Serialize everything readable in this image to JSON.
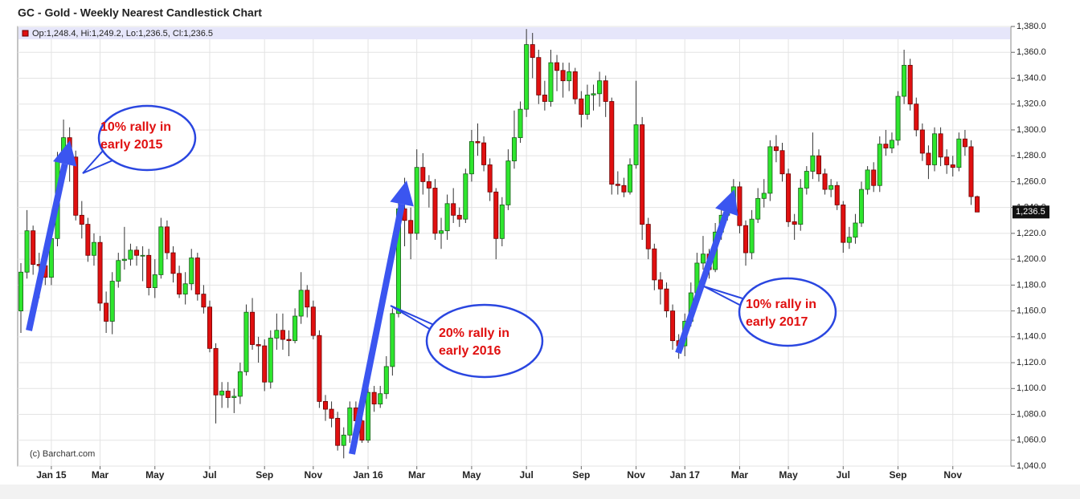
{
  "chart_data": {
    "type": "candlestick",
    "title": "GC - Gold - Weekly Nearest Candlestick Chart",
    "legend_text": "Op:1,248.4, Hi:1,249.2, Lo:1,236.5, Cl:1,236.5",
    "watermark": "(c) Barchart.com",
    "up_color": "#2ee62e",
    "down_color": "#e01010",
    "grid": true,
    "ylim": [
      1040,
      1380
    ],
    "yticks": [
      {
        "value": 1040,
        "label": "1,040.0"
      },
      {
        "value": 1060,
        "label": "1,060.0"
      },
      {
        "value": 1080,
        "label": "1,080.0"
      },
      {
        "value": 1100,
        "label": "1,100.0"
      },
      {
        "value": 1120,
        "label": "1,120.0"
      },
      {
        "value": 1140,
        "label": "1,140.0"
      },
      {
        "value": 1160,
        "label": "1,160.0"
      },
      {
        "value": 1180,
        "label": "1,180.0"
      },
      {
        "value": 1200,
        "label": "1,200.0"
      },
      {
        "value": 1220,
        "label": "1,220.0"
      },
      {
        "value": 1240,
        "label": "1,240.0"
      },
      {
        "value": 1260,
        "label": "1,260.0"
      },
      {
        "value": 1280,
        "label": "1,280.0"
      },
      {
        "value": 1300,
        "label": "1,300.0"
      },
      {
        "value": 1320,
        "label": "1,320.0"
      },
      {
        "value": 1340,
        "label": "1,340.0"
      },
      {
        "value": 1360,
        "label": "1,360.0"
      },
      {
        "value": 1380,
        "label": "1,380.0"
      }
    ],
    "last_price": {
      "value": 1236.5,
      "label": "1,236.5"
    },
    "categories": [
      null,
      null,
      null,
      null,
      null,
      "Jan 15",
      null,
      null,
      null,
      null,
      null,
      null,
      null,
      "Mar",
      null,
      null,
      null,
      null,
      null,
      null,
      null,
      null,
      "May",
      null,
      null,
      null,
      null,
      null,
      null,
      null,
      null,
      "Jul",
      null,
      null,
      null,
      null,
      null,
      null,
      null,
      null,
      "Sep",
      null,
      null,
      null,
      null,
      null,
      null,
      null,
      "Nov",
      null,
      null,
      null,
      null,
      null,
      null,
      null,
      null,
      "Jan 16",
      null,
      null,
      null,
      null,
      null,
      null,
      null,
      "Mar",
      null,
      null,
      null,
      null,
      null,
      null,
      null,
      null,
      "May",
      null,
      null,
      null,
      null,
      null,
      null,
      null,
      null,
      "Jul",
      null,
      null,
      null,
      null,
      null,
      null,
      null,
      null,
      "Sep",
      null,
      null,
      null,
      null,
      null,
      null,
      null,
      null,
      "Nov",
      null,
      null,
      null,
      null,
      null,
      null,
      null,
      "Jan 17",
      null,
      null,
      null,
      null,
      null,
      null,
      null,
      null,
      "Mar",
      null,
      null,
      null,
      null,
      null,
      null,
      null,
      "May",
      null,
      null,
      null,
      null,
      null,
      null,
      null,
      null,
      "Jul",
      null,
      null,
      null,
      null,
      null,
      null,
      null,
      null,
      "Sep",
      null,
      null,
      null,
      null,
      null,
      null,
      null,
      null,
      "Nov",
      null,
      null,
      null,
      null
    ],
    "open": [
      1160,
      1190,
      1222,
      1196,
      1195,
      1186,
      1216,
      1277,
      1294,
      1279,
      1234,
      1227,
      1203,
      1213,
      1166,
      1152,
      1183,
      1199,
      1200,
      1207,
      1203,
      1203,
      1178,
      1188,
      1225,
      1205,
      1189,
      1173,
      1181,
      1201,
      1173,
      1163,
      1131,
      1095,
      1098,
      1093,
      1094,
      1113,
      1159,
      1134,
      1133,
      1105,
      1139,
      1145,
      1138,
      1137,
      1156,
      1176,
      1163,
      1141,
      1090,
      1084,
      1077,
      1056,
      1064,
      1085,
      1075,
      1060,
      1097,
      1088,
      1096,
      1117,
      1158,
      1239,
      1230,
      1220,
      1271,
      1260,
      1255,
      1220,
      1222,
      1243,
      1234,
      1231,
      1266,
      1291,
      1290,
      1273,
      1252,
      1216,
      1242,
      1276,
      1294,
      1316,
      1366,
      1356,
      1327,
      1322,
      1352,
      1346,
      1338,
      1345,
      1324,
      1312,
      1327,
      1328,
      1338,
      1322,
      1258,
      1257,
      1252,
      1273,
      1304,
      1227,
      1208,
      1184,
      1177,
      1160,
      1137,
      1133,
      1152,
      1174,
      1197,
      1204,
      1192,
      1221,
      1234,
      1238,
      1256,
      1226,
      1205,
      1231,
      1247,
      1251,
      1287,
      1284,
      1266,
      1229,
      1227,
      1255,
      1268,
      1280,
      1266,
      1254,
      1257,
      1242,
      1213,
      1217,
      1228,
      1254,
      1269,
      1257,
      1289,
      1286,
      1292,
      1326,
      1350,
      1320,
      1300,
      1282,
      1273,
      1297,
      1279,
      1273,
      1271,
      1293,
      1287,
      1248.4
    ],
    "high": [
      1197,
      1238,
      1226,
      1205,
      1202,
      1224,
      1283,
      1308,
      1302,
      1284,
      1245,
      1232,
      1220,
      1218,
      1175,
      1190,
      1205,
      1225,
      1212,
      1210,
      1210,
      1208,
      1200,
      1232,
      1230,
      1210,
      1195,
      1190,
      1208,
      1205,
      1180,
      1168,
      1135,
      1105,
      1105,
      1100,
      1120,
      1165,
      1170,
      1140,
      1138,
      1145,
      1158,
      1158,
      1145,
      1162,
      1190,
      1180,
      1168,
      1145,
      1095,
      1090,
      1082,
      1070,
      1090,
      1090,
      1080,
      1105,
      1102,
      1102,
      1125,
      1162,
      1245,
      1263,
      1240,
      1285,
      1282,
      1265,
      1262,
      1232,
      1250,
      1255,
      1240,
      1270,
      1300,
      1305,
      1295,
      1278,
      1255,
      1248,
      1285,
      1315,
      1322,
      1378,
      1375,
      1362,
      1338,
      1362,
      1358,
      1352,
      1352,
      1348,
      1330,
      1335,
      1335,
      1345,
      1342,
      1325,
      1268,
      1263,
      1278,
      1338,
      1310,
      1232,
      1212,
      1190,
      1182,
      1165,
      1142,
      1158,
      1182,
      1205,
      1218,
      1208,
      1228,
      1240,
      1245,
      1262,
      1260,
      1230,
      1238,
      1255,
      1262,
      1292,
      1296,
      1290,
      1270,
      1235,
      1262,
      1272,
      1298,
      1285,
      1270,
      1262,
      1260,
      1245,
      1225,
      1235,
      1260,
      1272,
      1275,
      1295,
      1300,
      1298,
      1330,
      1362,
      1355,
      1325,
      1305,
      1288,
      1302,
      1302,
      1285,
      1280,
      1298,
      1300,
      1292,
      1249.2
    ],
    "low": [
      1143,
      1185,
      1188,
      1170,
      1180,
      1180,
      1210,
      1270,
      1260,
      1230,
      1216,
      1198,
      1195,
      1160,
      1143,
      1142,
      1178,
      1192,
      1195,
      1195,
      1183,
      1172,
      1170,
      1185,
      1200,
      1182,
      1170,
      1165,
      1176,
      1168,
      1158,
      1128,
      1073,
      1085,
      1085,
      1081,
      1088,
      1110,
      1130,
      1120,
      1098,
      1100,
      1130,
      1130,
      1125,
      1135,
      1150,
      1155,
      1138,
      1085,
      1075,
      1070,
      1052,
      1046,
      1058,
      1068,
      1058,
      1058,
      1082,
      1085,
      1092,
      1110,
      1155,
      1210,
      1200,
      1215,
      1250,
      1240,
      1215,
      1208,
      1215,
      1228,
      1225,
      1228,
      1260,
      1280,
      1268,
      1245,
      1200,
      1210,
      1238,
      1270,
      1290,
      1310,
      1340,
      1320,
      1315,
      1318,
      1330,
      1325,
      1330,
      1320,
      1302,
      1308,
      1315,
      1318,
      1310,
      1250,
      1250,
      1248,
      1250,
      1270,
      1215,
      1200,
      1176,
      1165,
      1155,
      1130,
      1123,
      1125,
      1148,
      1170,
      1192,
      1185,
      1190,
      1215,
      1230,
      1235,
      1220,
      1195,
      1200,
      1228,
      1240,
      1245,
      1275,
      1260,
      1225,
      1215,
      1222,
      1250,
      1262,
      1260,
      1250,
      1248,
      1238,
      1205,
      1208,
      1212,
      1225,
      1250,
      1252,
      1252,
      1280,
      1282,
      1288,
      1320,
      1315,
      1295,
      1276,
      1262,
      1268,
      1272,
      1266,
      1264,
      1268,
      1280,
      1242,
      1236.5
    ],
    "close": [
      1190,
      1222,
      1196,
      1195,
      1186,
      1216,
      1277,
      1294,
      1279,
      1234,
      1227,
      1203,
      1213,
      1166,
      1152,
      1183,
      1199,
      1200,
      1207,
      1203,
      1203,
      1178,
      1188,
      1225,
      1205,
      1189,
      1173,
      1181,
      1201,
      1173,
      1163,
      1131,
      1095,
      1098,
      1093,
      1094,
      1113,
      1159,
      1134,
      1133,
      1105,
      1139,
      1145,
      1138,
      1137,
      1156,
      1176,
      1163,
      1141,
      1090,
      1084,
      1077,
      1056,
      1064,
      1085,
      1075,
      1060,
      1097,
      1088,
      1096,
      1117,
      1158,
      1239,
      1230,
      1220,
      1271,
      1260,
      1255,
      1220,
      1222,
      1243,
      1234,
      1231,
      1266,
      1291,
      1290,
      1273,
      1252,
      1216,
      1242,
      1276,
      1294,
      1316,
      1366,
      1356,
      1327,
      1322,
      1352,
      1346,
      1338,
      1345,
      1324,
      1312,
      1327,
      1328,
      1338,
      1322,
      1258,
      1257,
      1252,
      1273,
      1304,
      1227,
      1208,
      1184,
      1177,
      1160,
      1137,
      1133,
      1152,
      1174,
      1197,
      1204,
      1192,
      1221,
      1234,
      1238,
      1256,
      1226,
      1205,
      1231,
      1247,
      1251,
      1287,
      1284,
      1266,
      1229,
      1227,
      1255,
      1268,
      1280,
      1266,
      1254,
      1257,
      1242,
      1213,
      1217,
      1228,
      1254,
      1269,
      1257,
      1289,
      1286,
      1292,
      1326,
      1350,
      1320,
      1300,
      1282,
      1273,
      1297,
      1279,
      1273,
      1271,
      1293,
      1287,
      1248.4,
      1236.5
    ],
    "annotations": [
      {
        "text": [
          "10% rally in",
          "early 2015"
        ]
      },
      {
        "text": [
          "20% rally in",
          "early 2016"
        ]
      },
      {
        "text": [
          "10% rally in",
          "early 2017"
        ]
      }
    ]
  }
}
